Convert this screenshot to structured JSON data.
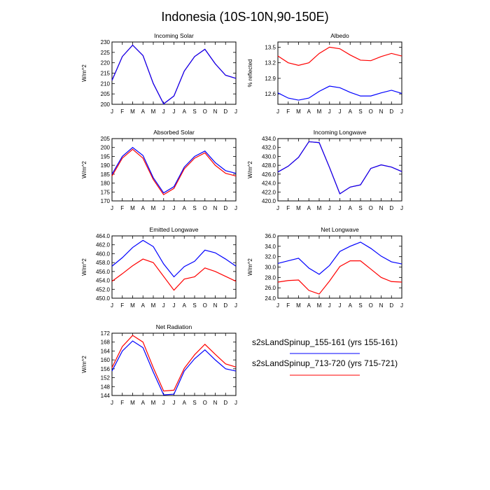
{
  "figure_title": "Indonesia (10S-10N,90-150E)",
  "colors": {
    "series_1": "#0000ff",
    "series_2": "#ff0000"
  },
  "legend": [
    {
      "label": "s2sLandSpinup_155-161 (yrs 155-161)",
      "color": "#0000ff"
    },
    {
      "label": "s2sLandSpinup_713-720 (yrs 715-721)",
      "color": "#ff0000"
    }
  ],
  "chart_data": [
    {
      "type": "line",
      "title": "Incoming Solar",
      "ylabel": "W/m^2",
      "categories": [
        "J",
        "F",
        "M",
        "A",
        "M",
        "J",
        "J",
        "A",
        "S",
        "O",
        "N",
        "D",
        "J"
      ],
      "ylim": [
        200,
        230
      ],
      "yticks": [
        200,
        205,
        210,
        215,
        220,
        225,
        230
      ],
      "ytick_labels": [
        "200",
        "205",
        "210",
        "215",
        "220",
        "225",
        "230"
      ],
      "series": [
        {
          "name": "s2sLandSpinup_155-161",
          "color": "#0000ff",
          "values": [
            211.5,
            223,
            228.5,
            223.5,
            210,
            200.2,
            204,
            216,
            223,
            226.5,
            219.5,
            214,
            212.5
          ]
        },
        {
          "name": "s2sLandSpinup_713-720",
          "color": "#ff0000",
          "values": [
            211.5,
            223,
            228.5,
            223.5,
            210,
            200.2,
            204,
            216,
            223,
            226.5,
            219.5,
            214,
            212.5
          ]
        }
      ]
    },
    {
      "type": "line",
      "title": "Albedo",
      "ylabel": "% reflected",
      "categories": [
        "J",
        "F",
        "M",
        "A",
        "M",
        "J",
        "J",
        "A",
        "S",
        "O",
        "N",
        "D",
        "J"
      ],
      "ylim": [
        12.4,
        13.6
      ],
      "yticks": [
        12.6,
        12.9,
        13.2,
        13.5
      ],
      "ytick_labels": [
        "12.6",
        "12.9",
        "13.2",
        "13.5"
      ],
      "series": [
        {
          "name": "s2sLandSpinup_155-161",
          "color": "#0000ff",
          "values": [
            12.62,
            12.52,
            12.48,
            12.52,
            12.65,
            12.75,
            12.72,
            12.63,
            12.56,
            12.56,
            12.62,
            12.67,
            12.61
          ]
        },
        {
          "name": "s2sLandSpinup_713-720",
          "color": "#ff0000",
          "values": [
            13.33,
            13.2,
            13.15,
            13.2,
            13.38,
            13.5,
            13.47,
            13.35,
            13.25,
            13.24,
            13.32,
            13.38,
            13.33
          ]
        }
      ]
    },
    {
      "type": "line",
      "title": "Absorbed Solar",
      "ylabel": "W/m^2",
      "categories": [
        "J",
        "F",
        "M",
        "A",
        "M",
        "J",
        "J",
        "A",
        "S",
        "O",
        "N",
        "D",
        "J"
      ],
      "ylim": [
        170,
        205
      ],
      "yticks": [
        170,
        175,
        180,
        185,
        190,
        195,
        200,
        205
      ],
      "ytick_labels": [
        "170",
        "175",
        "180",
        "185",
        "190",
        "195",
        "200",
        "205"
      ],
      "series": [
        {
          "name": "s2sLandSpinup_155-161",
          "color": "#0000ff",
          "values": [
            185,
            195,
            200,
            195.5,
            183,
            174.5,
            178,
            189,
            195,
            198,
            191.5,
            187,
            185.5
          ]
        },
        {
          "name": "s2sLandSpinup_713-720",
          "color": "#ff0000",
          "values": [
            184,
            194,
            199,
            194,
            182,
            173.5,
            177,
            188,
            194,
            197,
            190,
            185.5,
            184
          ]
        }
      ]
    },
    {
      "type": "line",
      "title": "Incoming Longwave",
      "ylabel": "W/m^2",
      "categories": [
        "J",
        "F",
        "M",
        "A",
        "M",
        "J",
        "J",
        "A",
        "S",
        "O",
        "N",
        "D",
        "J"
      ],
      "ylim": [
        420,
        434
      ],
      "yticks": [
        420,
        422,
        424,
        426,
        428,
        430,
        432,
        434
      ],
      "ytick_labels": [
        "420.0",
        "422.0",
        "424.0",
        "426.0",
        "428.0",
        "430.0",
        "432.0",
        "434.0"
      ],
      "series": [
        {
          "name": "s2sLandSpinup_155-161",
          "color": "#0000ff",
          "values": [
            426.5,
            427.8,
            429.8,
            433.3,
            433.1,
            427.5,
            421.6,
            423.1,
            423.6,
            427.3,
            428.1,
            427.6,
            426.6
          ]
        },
        {
          "name": "s2sLandSpinup_713-720",
          "color": "#ff0000",
          "values": [
            426.5,
            427.8,
            429.8,
            433.3,
            433.1,
            427.5,
            421.6,
            423.1,
            423.6,
            427.3,
            428.1,
            427.6,
            426.6
          ]
        }
      ]
    },
    {
      "type": "line",
      "title": "Emitted Longwave",
      "ylabel": "W/m^2",
      "categories": [
        "J",
        "F",
        "M",
        "A",
        "M",
        "J",
        "J",
        "A",
        "S",
        "O",
        "N",
        "D",
        "J"
      ],
      "ylim": [
        450,
        464
      ],
      "yticks": [
        450,
        452,
        454,
        456,
        458,
        460,
        462,
        464
      ],
      "ytick_labels": [
        "450.0",
        "452.0",
        "454.0",
        "456.0",
        "458.0",
        "460.0",
        "462.0",
        "464.0"
      ],
      "series": [
        {
          "name": "s2sLandSpinup_155-161",
          "color": "#0000ff",
          "values": [
            457.2,
            459.1,
            461.4,
            463,
            461.6,
            457.7,
            454.8,
            457.1,
            458.3,
            460.8,
            460.2,
            458.8,
            457.2
          ]
        },
        {
          "name": "s2sLandSpinup_713-720",
          "color": "#ff0000",
          "values": [
            453.8,
            455.5,
            457.3,
            458.8,
            458,
            454.9,
            451.8,
            454.3,
            454.8,
            456.8,
            456,
            454.9,
            453.8
          ]
        }
      ]
    },
    {
      "type": "line",
      "title": "Net Longwave",
      "ylabel": "W/m^2",
      "categories": [
        "J",
        "F",
        "M",
        "A",
        "M",
        "J",
        "J",
        "A",
        "S",
        "O",
        "N",
        "D",
        "J"
      ],
      "ylim": [
        24,
        36
      ],
      "yticks": [
        24,
        26,
        28,
        30,
        32,
        34,
        36
      ],
      "ytick_labels": [
        "24.0",
        "26.0",
        "28.0",
        "30.0",
        "32.0",
        "34.0",
        "36.0"
      ],
      "series": [
        {
          "name": "s2sLandSpinup_155-161",
          "color": "#0000ff",
          "values": [
            30.7,
            31.2,
            31.7,
            29.8,
            28.6,
            30.3,
            33,
            34,
            34.8,
            33.6,
            32.1,
            31,
            30.6
          ]
        },
        {
          "name": "s2sLandSpinup_713-720",
          "color": "#ff0000",
          "values": [
            27.1,
            27.4,
            27.5,
            25.5,
            24.8,
            27.3,
            30.1,
            31.2,
            31.2,
            29.6,
            28,
            27.2,
            27.1
          ]
        }
      ]
    },
    {
      "type": "line",
      "title": "Net Radiation",
      "ylabel": "W/m^2",
      "categories": [
        "J",
        "F",
        "M",
        "A",
        "M",
        "J",
        "J",
        "A",
        "S",
        "O",
        "N",
        "D",
        "J"
      ],
      "ylim": [
        144,
        172
      ],
      "yticks": [
        144,
        148,
        152,
        156,
        160,
        164,
        168,
        172
      ],
      "ytick_labels": [
        "144",
        "148",
        "152",
        "156",
        "160",
        "164",
        "168",
        "172"
      ],
      "series": [
        {
          "name": "s2sLandSpinup_155-161",
          "color": "#0000ff",
          "values": [
            155,
            164,
            168.5,
            165.5,
            154.5,
            144.3,
            144.6,
            155,
            160.5,
            164.5,
            160,
            156,
            155
          ]
        },
        {
          "name": "s2sLandSpinup_713-720",
          "color": "#ff0000",
          "values": [
            156.5,
            166,
            171,
            168,
            156.5,
            146,
            146.4,
            156.2,
            162.3,
            167,
            162.5,
            158.2,
            156.8
          ]
        }
      ]
    }
  ]
}
